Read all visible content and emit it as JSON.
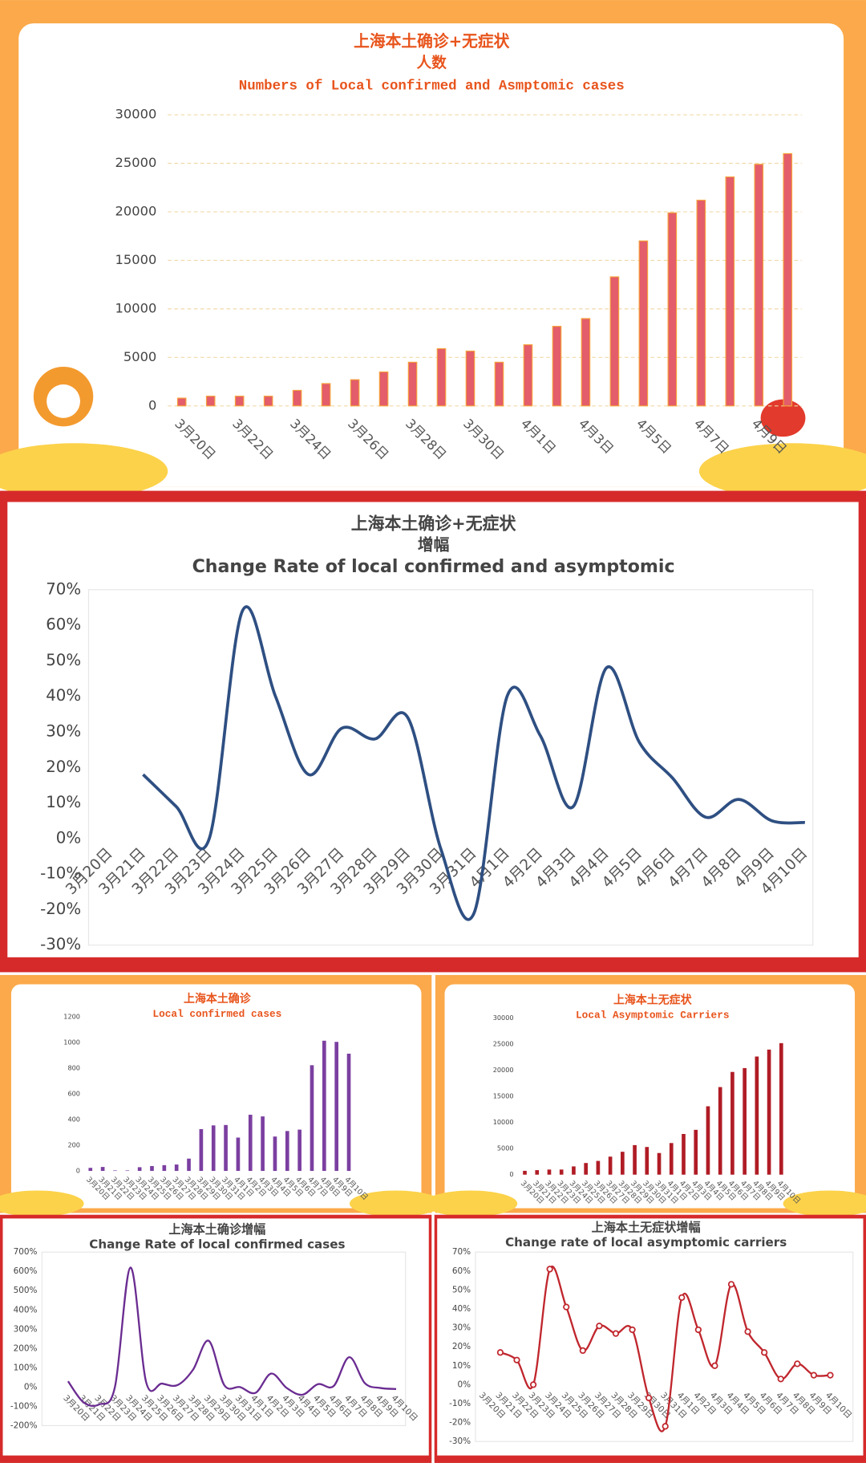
{
  "chart_data": [
    {
      "type": "bar",
      "title": "上海本土确诊+无症状",
      "subtitle": "人数",
      "title_en": "Numbers of Local confirmed and Asmptomic cases",
      "categories": [
        "3月20日",
        null,
        "3月22日",
        null,
        "3月24日",
        null,
        "3月26日",
        null,
        "3月28日",
        null,
        "3月30日",
        null,
        "4月1日",
        null,
        "4月3日",
        null,
        "4月5日",
        null,
        "4月7日",
        null,
        "4月9日",
        null
      ],
      "values": [
        800,
        1000,
        1000,
        1000,
        1600,
        2300,
        2700,
        3500,
        4500,
        5900,
        5650,
        4500,
        6300,
        8200,
        9000,
        13300,
        17000,
        19900,
        21200,
        23600,
        24900,
        26000
      ],
      "color": "#e35d6a",
      "ylim": [
        0,
        30000
      ],
      "yticks": [
        0,
        5000,
        10000,
        15000,
        20000,
        25000,
        30000
      ],
      "grid": true
    },
    {
      "type": "line",
      "title": "上海本土确诊+无症状",
      "subtitle": "增幅",
      "title_en": "Change Rate of local confirmed and asymptomic",
      "categories": [
        "3月20日",
        "3月21日",
        "3月22日",
        "3月23日",
        "3月24日",
        "3月25日",
        "3月26日",
        "3月27日",
        "3月28日",
        "3月29日",
        "3月30日",
        "3月31日",
        "4月1日",
        "4月2日",
        "4月3日",
        "4月4日",
        "4月5日",
        "4月6日",
        "4月7日",
        "4月8日",
        "4月9日",
        "4月10日"
      ],
      "values": [
        null,
        18,
        9,
        0,
        64,
        40,
        18,
        31,
        28,
        34,
        -3,
        -21,
        40,
        29,
        9,
        48,
        27,
        17,
        6,
        11,
        5,
        4.5
      ],
      "color": "#2e4f82",
      "ylim": [
        -30,
        70
      ],
      "yticks": [
        {
          "value": -30,
          "label": "-30%"
        },
        {
          "value": -20,
          "label": "-20%"
        },
        {
          "value": -10,
          "label": "-10%"
        },
        {
          "value": 0,
          "label": "0%"
        },
        {
          "value": 10,
          "label": "10%"
        },
        {
          "value": 20,
          "label": "20%"
        },
        {
          "value": 30,
          "label": "30%"
        },
        {
          "value": 40,
          "label": "40%"
        },
        {
          "value": 50,
          "label": "50%"
        },
        {
          "value": 60,
          "label": "60%"
        },
        {
          "value": 70,
          "label": "70%"
        }
      ],
      "grid": false
    },
    {
      "type": "bar",
      "title": "上海本土确诊",
      "title_en": "Local confirmed cases",
      "categories": [
        "3月20日",
        "3月21日",
        "3月22日",
        "3月23日",
        "3月24日",
        "3月25日",
        "3月26日",
        "3月27日",
        "3月28日",
        "3月29日",
        "3月30日",
        "3月31日",
        "4月1日",
        "4月2日",
        "4月3日",
        "4月4日",
        "4月5日",
        "4月6日",
        "4月7日",
        "4月8日",
        "4月9日",
        "4月10日"
      ],
      "values": [
        24,
        31,
        4,
        4,
        29,
        38,
        45,
        50,
        96,
        326,
        355,
        358,
        260,
        438,
        425,
        268,
        311,
        322,
        824,
        1015,
        1006,
        914
      ],
      "color": "#7b3fa0",
      "ylim": [
        0,
        1200
      ],
      "yticks": [
        0,
        200,
        400,
        600,
        800,
        1000,
        1200
      ],
      "grid": false
    },
    {
      "type": "bar",
      "title": "上海本土无症状",
      "title_en": "Local Asymptomic Carriers",
      "categories": [
        "3月20日",
        "3月21日",
        "3月22日",
        "3月23日",
        "3月24日",
        "3月25日",
        "3月26日",
        "3月27日",
        "3月28日",
        "3月29日",
        "3月30日",
        "3月31日",
        "4月1日",
        "4月2日",
        "4月3日",
        "4月4日",
        "4月5日",
        "4月6日",
        "4月7日",
        "4月8日",
        "4月9日",
        "4月10日"
      ],
      "values": [
        734,
        865,
        977,
        979,
        1580,
        2231,
        2631,
        3450,
        4381,
        5656,
        5298,
        4144,
        6051,
        7788,
        8581,
        13086,
        16766,
        19660,
        20398,
        22609,
        23937,
        25173
      ],
      "color": "#b01c25",
      "ylim": [
        0,
        30000
      ],
      "yticks": [
        0,
        5000,
        10000,
        15000,
        20000,
        25000,
        30000
      ],
      "grid": false
    },
    {
      "type": "line",
      "title": "上海本土确诊增幅",
      "title_en": "Change Rate of local confirmed cases",
      "categories": [
        "3月20日",
        "3月21日",
        "3月22日",
        "3月23日",
        "3月24日",
        "3月25日",
        "3月26日",
        "3月27日",
        "3月28日",
        "3月29日",
        "3月30日",
        "3月31日",
        "4月1日",
        "4月2日",
        "4月3日",
        "4月4日",
        "4月5日",
        "4月6日",
        "4月7日",
        "4月8日",
        "4月9日",
        "4月10日"
      ],
      "values": [
        30,
        -80,
        -90,
        0,
        620,
        25,
        18,
        10,
        90,
        240,
        10,
        0,
        -30,
        70,
        -5,
        -40,
        15,
        5,
        155,
        20,
        -5,
        -10
      ],
      "color": "#6a2c91",
      "ylim": [
        -200,
        700
      ],
      "yticks": [
        {
          "value": -200,
          "label": "-200%"
        },
        {
          "value": -100,
          "label": "-100%"
        },
        {
          "value": 0,
          "label": "0%"
        },
        {
          "value": 100,
          "label": "100%"
        },
        {
          "value": 200,
          "label": "200%"
        },
        {
          "value": 300,
          "label": "300%"
        },
        {
          "value": 400,
          "label": "400%"
        },
        {
          "value": 500,
          "label": "500%"
        },
        {
          "value": 600,
          "label": "600%"
        },
        {
          "value": 700,
          "label": "700%"
        }
      ],
      "grid": false
    },
    {
      "type": "line",
      "title": "上海本土无症状增幅",
      "title_en": "Change rate of local asymptomic carriers",
      "categories": [
        "3月20日",
        "3月21日",
        "3月22日",
        "3月23日",
        "3月24日",
        "3月25日",
        "3月26日",
        "3月27日",
        "3月28日",
        "3月29日",
        "3月30日",
        "3月31日",
        "4月1日",
        "4月2日",
        "4月3日",
        "4月4日",
        "4月5日",
        "4月6日",
        "4月7日",
        "4月8日",
        "4月9日",
        "4月10日"
      ],
      "values": [
        null,
        17,
        13,
        0,
        61,
        41,
        18,
        31,
        27,
        29,
        -7,
        -22,
        46,
        29,
        10,
        53,
        28,
        17,
        3,
        11,
        5,
        5
      ],
      "color": "#c0262d",
      "markers": true,
      "ylim": [
        -30,
        70
      ],
      "yticks": [
        {
          "value": -30,
          "label": "-30%"
        },
        {
          "value": -20,
          "label": "-20%"
        },
        {
          "value": -10,
          "label": "-10%"
        },
        {
          "value": 0,
          "label": "0%"
        },
        {
          "value": 10,
          "label": "10%"
        },
        {
          "value": 20,
          "label": "20%"
        },
        {
          "value": 30,
          "label": "30%"
        },
        {
          "value": 40,
          "label": "40%"
        },
        {
          "value": 50,
          "label": "50%"
        },
        {
          "value": 60,
          "label": "60%"
        },
        {
          "value": 70,
          "label": "70%"
        }
      ],
      "grid": false
    }
  ]
}
